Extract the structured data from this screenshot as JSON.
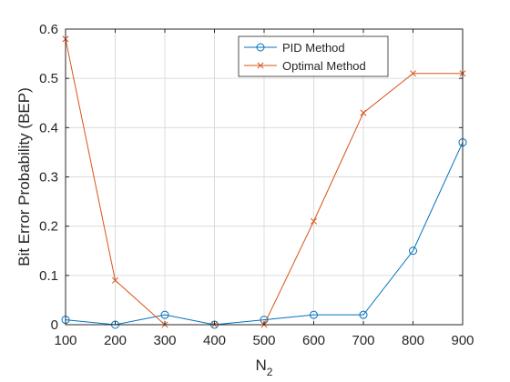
{
  "chart_data": {
    "type": "line",
    "title": "",
    "xlabel": "N",
    "xlabel_subscript": "2",
    "ylabel": "Bit Error Probability (BEP)",
    "xlim": [
      100,
      900
    ],
    "ylim": [
      0,
      0.6
    ],
    "x": [
      100,
      200,
      300,
      400,
      500,
      600,
      700,
      800,
      900
    ],
    "x_ticks": [
      "100",
      "200",
      "300",
      "400",
      "500",
      "600",
      "700",
      "800",
      "900"
    ],
    "y_ticks": [
      "0",
      "0.1",
      "0.2",
      "0.3",
      "0.4",
      "0.5",
      "0.6"
    ],
    "y_tick_values": [
      0,
      0.1,
      0.2,
      0.3,
      0.4,
      0.5,
      0.6
    ],
    "grid": true,
    "legend_position": "top-right",
    "series": [
      {
        "name": "PID Method",
        "color": "#0072BD",
        "marker": "circle",
        "values": [
          0.01,
          0.0,
          0.02,
          0.0,
          0.01,
          0.02,
          0.02,
          0.15,
          0.37
        ]
      },
      {
        "name": "Optimal Method",
        "color": "#D95319",
        "marker": "x",
        "values": [
          0.58,
          0.09,
          0.0,
          0.0,
          0.0,
          0.21,
          0.43,
          0.51,
          0.51
        ]
      }
    ]
  }
}
